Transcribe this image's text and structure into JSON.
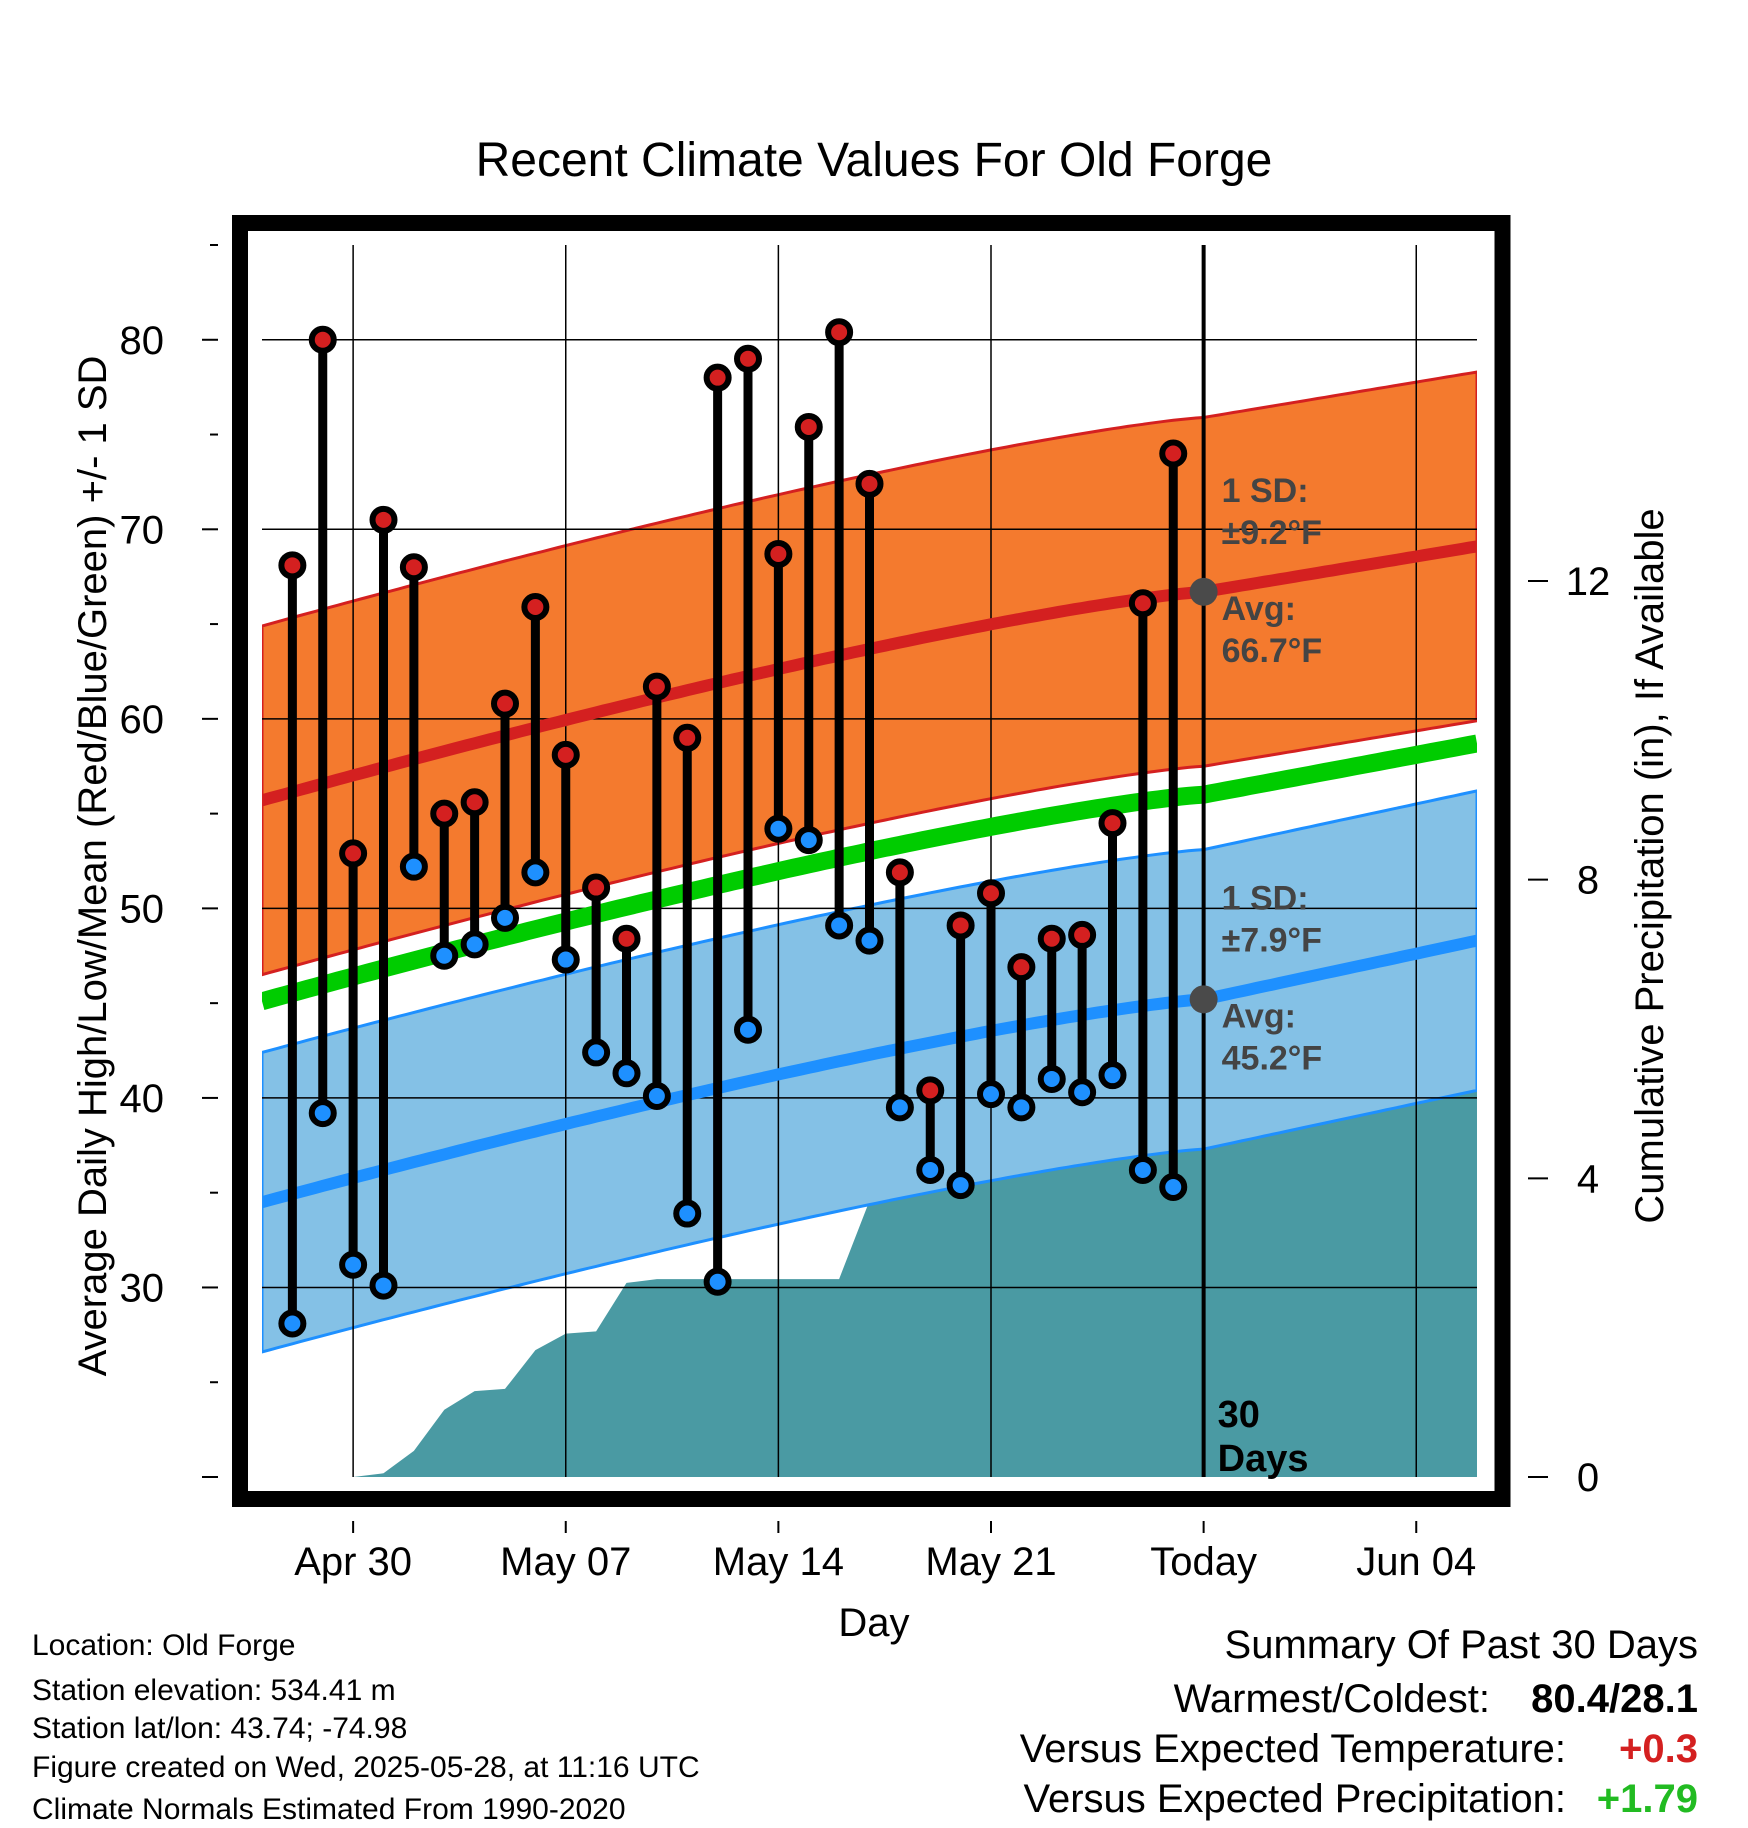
{
  "chart_data": {
    "type": "line",
    "title": "Recent Climate Values For Old Forge",
    "xlabel": "Day",
    "ylabel_left": "Average Daily High/Low/Mean (Red/Blue/Green) +/- 1 SD",
    "ylabel_right": "Cumulative Precipitation (in), If Available",
    "x_start_day": -31,
    "x_end_day": 9,
    "x_ticks": [
      {
        "day": -28,
        "label": "Apr 30"
      },
      {
        "day": -21,
        "label": "May 07"
      },
      {
        "day": -14,
        "label": "May 14"
      },
      {
        "day": -7,
        "label": "May 21"
      },
      {
        "day": 0,
        "label": "Today"
      },
      {
        "day": 7,
        "label": "Jun 04"
      }
    ],
    "y_left_range": [
      20,
      85
    ],
    "y_left_ticks": [
      30,
      40,
      50,
      60,
      70,
      80
    ],
    "y_right_range": [
      0,
      16.5
    ],
    "y_right_ticks": [
      0,
      4,
      8,
      12
    ],
    "colors": {
      "high": "#d42020",
      "low": "#1e90ff",
      "mean": "#00cc00",
      "high_band": "#f47a2e",
      "low_band": "#84c1e6",
      "precip": "#4a9aa3",
      "marker": "#4a4a4a"
    },
    "normal_high": {
      "start": 55.7,
      "today": 66.7,
      "end": 69.1,
      "sd": 9.2
    },
    "normal_low": {
      "start": 34.5,
      "today": 45.2,
      "end": 48.3,
      "sd": 7.9
    },
    "normal_mean": {
      "start": 45.1,
      "today": 56.0,
      "end": 58.7
    },
    "observations": [
      {
        "day": -30,
        "high": 68.1,
        "low": 28.1
      },
      {
        "day": -29,
        "high": 80.0,
        "low": 39.2
      },
      {
        "day": -28,
        "high": 52.9,
        "low": 31.2
      },
      {
        "day": -27,
        "high": 70.5,
        "low": 30.1
      },
      {
        "day": -26,
        "high": 68.0,
        "low": 52.2
      },
      {
        "day": -25,
        "high": 55.0,
        "low": 47.5
      },
      {
        "day": -24,
        "high": 55.6,
        "low": 48.1
      },
      {
        "day": -23,
        "high": 60.8,
        "low": 49.5
      },
      {
        "day": -22,
        "high": 65.9,
        "low": 51.9
      },
      {
        "day": -21,
        "high": 58.1,
        "low": 47.3
      },
      {
        "day": -20,
        "high": 51.1,
        "low": 42.4
      },
      {
        "day": -19,
        "high": 48.4,
        "low": 41.3
      },
      {
        "day": -18,
        "high": 61.7,
        "low": 40.1
      },
      {
        "day": -17,
        "high": 59.0,
        "low": 33.9
      },
      {
        "day": -16,
        "high": 78.0,
        "low": 30.3
      },
      {
        "day": -15,
        "high": 79.0,
        "low": 43.6
      },
      {
        "day": -14,
        "high": 68.7,
        "low": 54.2
      },
      {
        "day": -13,
        "high": 75.4,
        "low": 53.6
      },
      {
        "day": -12,
        "high": 80.4,
        "low": 49.1
      },
      {
        "day": -11,
        "high": 72.4,
        "low": 48.3
      },
      {
        "day": -10,
        "high": 51.9,
        "low": 39.5
      },
      {
        "day": -9,
        "high": 40.4,
        "low": 36.2
      },
      {
        "day": -8,
        "high": 49.1,
        "low": 35.4
      },
      {
        "day": -7,
        "high": 50.8,
        "low": 40.2
      },
      {
        "day": -6,
        "high": 46.9,
        "low": 39.5
      },
      {
        "day": -5,
        "high": 48.4,
        "low": 41.0
      },
      {
        "day": -4,
        "high": 48.6,
        "low": 40.3
      },
      {
        "day": -3,
        "high": 54.5,
        "low": 41.2
      },
      {
        "day": -2,
        "high": 66.1,
        "low": 36.2
      },
      {
        "day": -1,
        "high": 74.0,
        "low": 35.3
      }
    ],
    "precip_cumulative": [
      {
        "day": -31,
        "value": 0.0
      },
      {
        "day": -28,
        "value": 0.0
      },
      {
        "day": -27,
        "value": 0.05
      },
      {
        "day": -26,
        "value": 0.35
      },
      {
        "day": -25,
        "value": 0.9
      },
      {
        "day": -24,
        "value": 1.15
      },
      {
        "day": -23,
        "value": 1.18
      },
      {
        "day": -22,
        "value": 1.7
      },
      {
        "day": -21,
        "value": 1.92
      },
      {
        "day": -20,
        "value": 1.95
      },
      {
        "day": -19,
        "value": 2.6
      },
      {
        "day": -18,
        "value": 2.65
      },
      {
        "day": -12,
        "value": 2.65
      },
      {
        "day": -11,
        "value": 3.7
      },
      {
        "day": -10,
        "value": 4.45
      },
      {
        "day": -8,
        "value": 4.45
      },
      {
        "day": -7,
        "value": 4.65
      },
      {
        "day": -6,
        "value": 4.7
      },
      {
        "day": -5,
        "value": 4.95
      },
      {
        "day": -4,
        "value": 5.4
      },
      {
        "day": -3,
        "value": 5.55
      },
      {
        "day": -2,
        "value": 5.7
      },
      {
        "day": -1,
        "value": 5.75
      },
      {
        "day": 9,
        "value": 5.75
      }
    ],
    "annotations": {
      "high_sd_label": "1 SD:",
      "high_sd_value": "±9.2°F",
      "high_avg_label": "Avg:",
      "high_avg_value": "66.7°F",
      "low_sd_label": "1 SD:",
      "low_sd_value": "±7.9°F",
      "low_avg_label": "Avg:",
      "low_avg_value": "45.2°F",
      "days_line1": "30",
      "days_line2": "Days"
    }
  },
  "footer": {
    "location": "Location: Old Forge",
    "elevation": "Station elevation: 534.41 m",
    "latlon": "Station lat/lon: 43.74; -74.98",
    "created": "Figure created on Wed, 2025-05-28, at 11:16 UTC",
    "normals": "Climate Normals Estimated From 1990-2020",
    "summary_title": "Summary Of Past 30 Days",
    "warmest_label": "Warmest/Coldest:",
    "warmest_value": "80.4/28.1",
    "temp_label": "Versus Expected Temperature:",
    "temp_value": "+0.3",
    "temp_color": "#d42020",
    "precip_label": "Versus Expected Precipitation:",
    "precip_value": "+1.79",
    "precip_color": "#22bb22"
  }
}
